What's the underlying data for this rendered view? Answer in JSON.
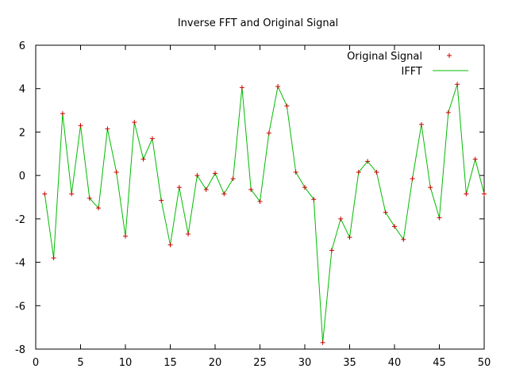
{
  "chart_data": {
    "type": "line",
    "title": "Inverse FFT and Original Signal",
    "xlabel": "",
    "ylabel": "",
    "xlim": [
      0,
      50
    ],
    "ylim": [
      -8,
      6
    ],
    "xticks": [
      0,
      5,
      10,
      15,
      20,
      25,
      30,
      35,
      40,
      45,
      50
    ],
    "yticks": [
      -8,
      -6,
      -4,
      -2,
      0,
      2,
      4,
      6
    ],
    "grid": false,
    "legend_position": "top-right",
    "x": [
      1,
      2,
      3,
      4,
      5,
      6,
      7,
      8,
      9,
      10,
      11,
      12,
      13,
      14,
      15,
      16,
      17,
      18,
      19,
      20,
      21,
      22,
      23,
      24,
      25,
      26,
      27,
      28,
      29,
      30,
      31,
      32,
      33,
      34,
      35,
      36,
      37,
      38,
      39,
      40,
      41,
      42,
      43,
      44,
      45,
      46,
      47,
      48,
      49,
      50
    ],
    "series": [
      {
        "name": "Original Signal",
        "style": "points",
        "marker": "plus",
        "color": "#cc0000",
        "values": [
          -0.85,
          -3.8,
          2.85,
          -0.85,
          2.3,
          -1.05,
          -1.5,
          2.15,
          0.15,
          -2.8,
          2.45,
          0.75,
          1.7,
          -1.15,
          -3.2,
          -0.55,
          -2.7,
          0.0,
          -0.65,
          0.1,
          -0.85,
          -0.15,
          4.05,
          -0.65,
          -1.2,
          1.95,
          4.1,
          3.2,
          0.15,
          -0.55,
          -1.1,
          -7.7,
          -3.45,
          -2.0,
          -2.85,
          0.15,
          0.65,
          0.15,
          -1.7,
          -2.35,
          -2.95,
          -0.15,
          2.35,
          -0.55,
          -1.95,
          2.9,
          4.2,
          -0.85,
          0.75,
          -0.85
        ]
      },
      {
        "name": "IFFT",
        "style": "line",
        "color": "#00bb00",
        "values": [
          -0.85,
          -3.8,
          2.85,
          -0.85,
          2.3,
          -1.05,
          -1.5,
          2.15,
          0.15,
          -2.8,
          2.45,
          0.75,
          1.7,
          -1.15,
          -3.2,
          -0.55,
          -2.7,
          0.0,
          -0.65,
          0.1,
          -0.85,
          -0.15,
          4.05,
          -0.65,
          -1.2,
          1.95,
          4.1,
          3.2,
          0.15,
          -0.55,
          -1.1,
          -7.7,
          -3.45,
          -2.0,
          -2.85,
          0.15,
          0.65,
          0.15,
          -1.7,
          -2.35,
          -2.95,
          -0.15,
          2.35,
          -0.55,
          -1.95,
          2.9,
          4.2,
          -0.85,
          0.75,
          -0.85
        ]
      }
    ]
  }
}
